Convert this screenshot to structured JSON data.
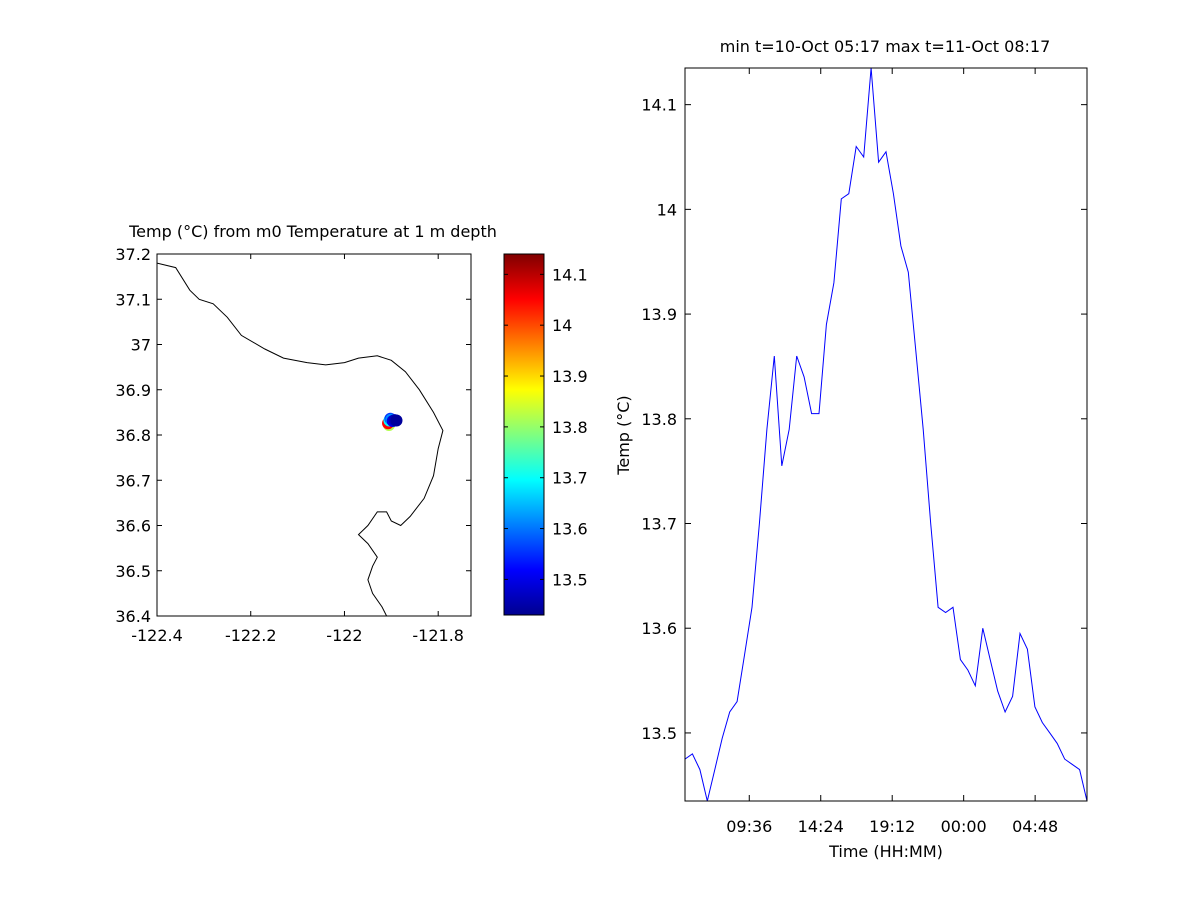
{
  "chart_data": [
    {
      "type": "scatter",
      "title": "Temp (°C) from m0 Temperature at 1 m depth",
      "xlabel": "",
      "ylabel": "",
      "xlim": [
        -122.4,
        -121.73
      ],
      "ylim": [
        36.4,
        37.2
      ],
      "xticks": [
        -122.4,
        -122.2,
        -122,
        -121.8
      ],
      "xtick_labels": [
        "-122.4",
        "-122.2",
        "-122",
        "-121.8"
      ],
      "yticks": [
        36.4,
        36.5,
        36.6,
        36.7,
        36.8,
        36.9,
        37,
        37.1,
        37.2
      ],
      "ytick_labels": [
        "36.4",
        "36.5",
        "36.6",
        "36.7",
        "36.8",
        "36.9",
        "37",
        "37.1",
        "37.2"
      ],
      "grid": false,
      "coastline": [
        [
          -122.4,
          37.18
        ],
        [
          -122.36,
          37.17
        ],
        [
          -122.33,
          37.12
        ],
        [
          -122.31,
          37.1
        ],
        [
          -122.28,
          37.09
        ],
        [
          -122.25,
          37.06
        ],
        [
          -122.22,
          37.02
        ],
        [
          -122.17,
          36.99
        ],
        [
          -122.13,
          36.97
        ],
        [
          -122.08,
          36.96
        ],
        [
          -122.04,
          36.955
        ],
        [
          -122.0,
          36.96
        ],
        [
          -121.97,
          36.97
        ],
        [
          -121.93,
          36.975
        ],
        [
          -121.9,
          36.965
        ],
        [
          -121.87,
          36.94
        ],
        [
          -121.84,
          36.9
        ],
        [
          -121.81,
          36.85
        ],
        [
          -121.79,
          36.81
        ],
        [
          -121.8,
          36.77
        ],
        [
          -121.81,
          36.71
        ],
        [
          -121.83,
          36.66
        ],
        [
          -121.86,
          36.62
        ],
        [
          -121.88,
          36.6
        ],
        [
          -121.9,
          36.61
        ],
        [
          -121.91,
          36.63
        ],
        [
          -121.93,
          36.63
        ],
        [
          -121.95,
          36.6
        ],
        [
          -121.97,
          36.58
        ],
        [
          -121.95,
          36.56
        ],
        [
          -121.93,
          36.53
        ],
        [
          -121.94,
          36.51
        ],
        [
          -121.95,
          36.48
        ],
        [
          -121.94,
          36.45
        ],
        [
          -121.92,
          36.42
        ],
        [
          -121.91,
          36.4
        ]
      ],
      "points": [
        {
          "lon": -121.905,
          "lat": 36.822,
          "temp": 13.82
        },
        {
          "lon": -121.907,
          "lat": 36.826,
          "temp": 14.05
        },
        {
          "lon": -121.904,
          "lat": 36.832,
          "temp": 13.7
        },
        {
          "lon": -121.902,
          "lat": 36.836,
          "temp": 13.55
        },
        {
          "lon": -121.9,
          "lat": 36.834,
          "temp": 13.62
        },
        {
          "lon": -121.897,
          "lat": 36.831,
          "temp": 13.5
        },
        {
          "lon": -121.893,
          "lat": 36.833,
          "temp": 13.47
        },
        {
          "lon": -121.889,
          "lat": 36.832,
          "temp": 13.45
        }
      ]
    },
    {
      "type": "colorbar",
      "colormap": "jet",
      "clim": [
        13.43,
        14.14
      ],
      "ticks": [
        13.5,
        13.6,
        13.7,
        13.8,
        13.9,
        14,
        14.1
      ],
      "tick_labels": [
        "13.5",
        "13.6",
        "13.7",
        "13.8",
        "13.9",
        "14",
        "14.1"
      ]
    },
    {
      "type": "line",
      "title": "min t=10-Oct 05:17 max t=11-Oct 08:17",
      "xlabel": "Time (HH:MM)",
      "ylabel": "Temp (°C)",
      "xlim": [
        "10-Oct 05:17",
        "11-Oct 08:17"
      ],
      "ylim": [
        13.435,
        14.135
      ],
      "xticks": [
        "10-Oct 09:36",
        "10-Oct 14:24",
        "10-Oct 19:12",
        "11-Oct 00:00",
        "11-Oct 04:48"
      ],
      "xtick_labels": [
        "09:36",
        "14:24",
        "19:12",
        "00:00",
        "04:48"
      ],
      "yticks": [
        13.5,
        13.6,
        13.7,
        13.8,
        13.9,
        14,
        14.1
      ],
      "ytick_labels": [
        "13.5",
        "13.6",
        "13.7",
        "13.8",
        "13.9",
        "14",
        "14.1"
      ],
      "grid": false,
      "color": "#0000ff",
      "series": [
        {
          "x": [
            "10-Oct 05:17",
            "10-Oct 05:47",
            "10-Oct 06:17",
            "10-Oct 06:47",
            "10-Oct 07:17",
            "10-Oct 07:47",
            "10-Oct 08:17",
            "10-Oct 08:47",
            "10-Oct 09:17",
            "10-Oct 09:47",
            "10-Oct 10:17",
            "10-Oct 10:47",
            "10-Oct 11:17",
            "10-Oct 11:47",
            "10-Oct 12:17",
            "10-Oct 12:47",
            "10-Oct 13:17",
            "10-Oct 13:47",
            "10-Oct 14:17",
            "10-Oct 14:47",
            "10-Oct 15:17",
            "10-Oct 15:47",
            "10-Oct 16:17",
            "10-Oct 16:47",
            "10-Oct 17:17",
            "10-Oct 17:47",
            "10-Oct 18:17",
            "10-Oct 18:47",
            "10-Oct 19:17",
            "10-Oct 19:47",
            "10-Oct 20:17",
            "10-Oct 20:47",
            "10-Oct 21:17",
            "10-Oct 21:47",
            "10-Oct 22:17",
            "10-Oct 22:47",
            "10-Oct 23:17",
            "10-Oct 23:47",
            "11-Oct 00:17",
            "11-Oct 00:47",
            "11-Oct 01:17",
            "11-Oct 01:47",
            "11-Oct 02:17",
            "11-Oct 02:47",
            "11-Oct 03:17",
            "11-Oct 03:47",
            "11-Oct 04:17",
            "11-Oct 04:47",
            "11-Oct 05:17",
            "11-Oct 05:47",
            "11-Oct 06:17",
            "11-Oct 06:47",
            "11-Oct 07:17",
            "11-Oct 07:47",
            "11-Oct 08:17"
          ],
          "values": [
            13.475,
            13.48,
            13.465,
            13.435,
            13.465,
            13.495,
            13.52,
            13.53,
            13.575,
            13.62,
            13.7,
            13.79,
            13.86,
            13.755,
            13.79,
            13.86,
            13.84,
            13.805,
            13.805,
            13.89,
            13.93,
            14.01,
            14.015,
            14.06,
            14.05,
            14.135,
            14.045,
            14.055,
            14.015,
            13.965,
            13.94,
            13.865,
            13.79,
            13.7,
            13.62,
            13.615,
            13.62,
            13.57,
            13.56,
            13.545,
            13.6,
            13.57,
            13.54,
            13.52,
            13.535,
            13.595,
            13.58,
            13.525,
            13.51,
            13.5,
            13.49,
            13.475,
            13.47,
            13.465,
            13.435
          ]
        }
      ]
    }
  ]
}
